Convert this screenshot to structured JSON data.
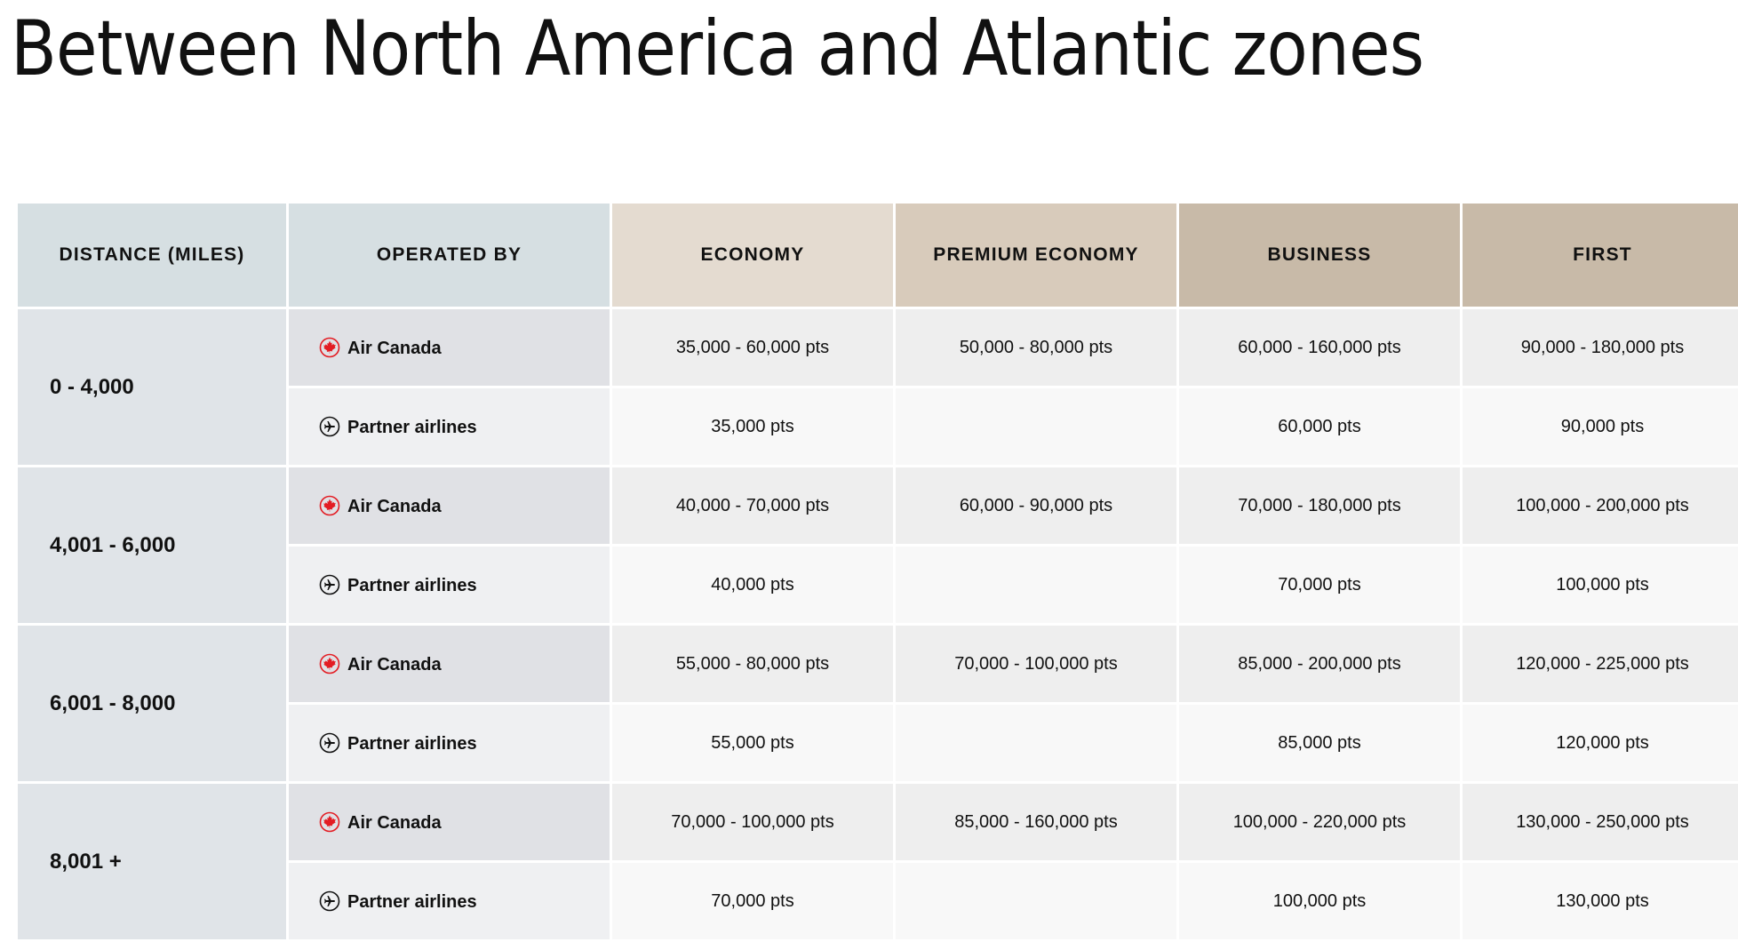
{
  "title": "Between North America and Atlantic zones",
  "colors": {
    "air_canada_red": "#e31c23"
  },
  "table": {
    "headers": [
      "DISTANCE (MILES)",
      "OPERATED BY",
      "ECONOMY",
      "PREMIUM ECONOMY",
      "BUSINESS",
      "FIRST"
    ],
    "groups": [
      {
        "distance": "0 - 4,000",
        "rows": [
          {
            "operator": "Air Canada",
            "icon": "maple-leaf-icon",
            "economy": "35,000 - 60,000 pts",
            "premium": "50,000 - 80,000 pts",
            "business": "60,000 - 160,000 pts",
            "first": "90,000 - 180,000 pts"
          },
          {
            "operator": "Partner airlines",
            "icon": "airplane-icon",
            "economy": "35,000 pts",
            "premium": "",
            "business": "60,000 pts",
            "first": "90,000 pts"
          }
        ]
      },
      {
        "distance": "4,001 - 6,000",
        "rows": [
          {
            "operator": "Air Canada",
            "icon": "maple-leaf-icon",
            "economy": "40,000 - 70,000 pts",
            "premium": "60,000 - 90,000 pts",
            "business": "70,000 - 180,000 pts",
            "first": "100,000 - 200,000 pts"
          },
          {
            "operator": "Partner airlines",
            "icon": "airplane-icon",
            "economy": "40,000 pts",
            "premium": "",
            "business": "70,000 pts",
            "first": "100,000 pts"
          }
        ]
      },
      {
        "distance": "6,001 - 8,000",
        "rows": [
          {
            "operator": "Air Canada",
            "icon": "maple-leaf-icon",
            "economy": "55,000 - 80,000 pts",
            "premium": "70,000 - 100,000 pts",
            "business": "85,000 - 200,000 pts",
            "first": "120,000 - 225,000 pts"
          },
          {
            "operator": "Partner airlines",
            "icon": "airplane-icon",
            "economy": "55,000 pts",
            "premium": "",
            "business": "85,000 pts",
            "first": "120,000 pts"
          }
        ]
      },
      {
        "distance": "8,001 +",
        "rows": [
          {
            "operator": "Air Canada",
            "icon": "maple-leaf-icon",
            "economy": "70,000 - 100,000 pts",
            "premium": "85,000 - 160,000 pts",
            "business": "100,000 - 220,000 pts",
            "first": "130,000 - 250,000 pts"
          },
          {
            "operator": "Partner airlines",
            "icon": "airplane-icon",
            "economy": "70,000 pts",
            "premium": "",
            "business": "100,000 pts",
            "first": "130,000 pts"
          }
        ]
      }
    ]
  }
}
